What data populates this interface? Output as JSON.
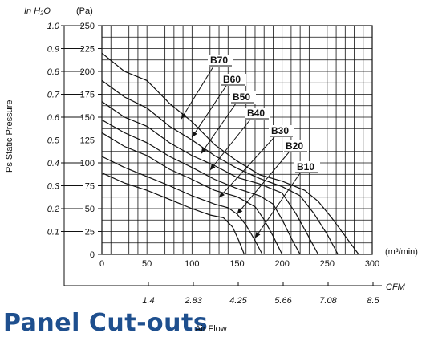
{
  "chart_data": {
    "type": "line",
    "xlabel": "(m³/min)",
    "ylabel": "Ps Static Pressure",
    "y_unit_left": "In H₂O",
    "y_unit_right": "(Pa)",
    "x2_label": "CFM",
    "xlim": [
      0,
      300
    ],
    "ylim": [
      0,
      250
    ],
    "grid": true,
    "x_ticks": [
      "0",
      "50",
      "100",
      "150",
      "200",
      "250",
      "300"
    ],
    "y_ticks_pa": [
      "0",
      "25",
      "50",
      "75",
      "100",
      "125",
      "150",
      "175",
      "200",
      "225",
      "250"
    ],
    "y_ticks_inh2o": [
      "0.1",
      "0.2",
      "0.3",
      "0.4",
      "0.5",
      "0.6",
      "0.7",
      "0.8",
      "0.9",
      "1.0"
    ],
    "cfm_ticks": [
      "1.4",
      "2.83",
      "4.25",
      "5.66",
      "7.08",
      "8.5"
    ],
    "series": [
      {
        "name": "B70",
        "points": [
          [
            0,
            220
          ],
          [
            25,
            200
          ],
          [
            50,
            190
          ],
          [
            75,
            165
          ],
          [
            100,
            145
          ],
          [
            125,
            120
          ],
          [
            150,
            102
          ],
          [
            175,
            87
          ],
          [
            200,
            80
          ],
          [
            225,
            70
          ],
          [
            240,
            58
          ],
          [
            255,
            40
          ],
          [
            270,
            20
          ],
          [
            285,
            0
          ]
        ]
      },
      {
        "name": "B60",
        "points": [
          [
            0,
            190
          ],
          [
            25,
            172
          ],
          [
            50,
            160
          ],
          [
            75,
            140
          ],
          [
            100,
            125
          ],
          [
            125,
            108
          ],
          [
            150,
            94
          ],
          [
            175,
            83
          ],
          [
            200,
            74
          ],
          [
            220,
            64
          ],
          [
            235,
            45
          ],
          [
            250,
            22
          ],
          [
            262,
            0
          ]
        ]
      },
      {
        "name": "B50",
        "points": [
          [
            0,
            167
          ],
          [
            25,
            150
          ],
          [
            50,
            140
          ],
          [
            75,
            122
          ],
          [
            100,
            108
          ],
          [
            125,
            97
          ],
          [
            150,
            84
          ],
          [
            175,
            77
          ],
          [
            200,
            67
          ],
          [
            215,
            45
          ],
          [
            228,
            22
          ],
          [
            240,
            0
          ]
        ]
      },
      {
        "name": "B40",
        "points": [
          [
            0,
            147
          ],
          [
            25,
            133
          ],
          [
            50,
            122
          ],
          [
            75,
            107
          ],
          [
            100,
            95
          ],
          [
            125,
            82
          ],
          [
            150,
            72
          ],
          [
            175,
            64
          ],
          [
            190,
            55
          ],
          [
            200,
            38
          ],
          [
            210,
            18
          ],
          [
            220,
            0
          ]
        ]
      },
      {
        "name": "B30",
        "points": [
          [
            0,
            133
          ],
          [
            25,
            118
          ],
          [
            50,
            108
          ],
          [
            75,
            93
          ],
          [
            100,
            82
          ],
          [
            125,
            70
          ],
          [
            150,
            63
          ],
          [
            170,
            52
          ],
          [
            180,
            38
          ],
          [
            190,
            20
          ],
          [
            200,
            0
          ]
        ]
      },
      {
        "name": "B20",
        "points": [
          [
            0,
            107
          ],
          [
            25,
            95
          ],
          [
            50,
            85
          ],
          [
            75,
            75
          ],
          [
            100,
            64
          ],
          [
            125,
            55
          ],
          [
            140,
            51
          ],
          [
            150,
            44
          ],
          [
            160,
            32
          ],
          [
            170,
            15
          ],
          [
            178,
            0
          ]
        ]
      },
      {
        "name": "B10",
        "points": [
          [
            0,
            89
          ],
          [
            25,
            78
          ],
          [
            50,
            70
          ],
          [
            75,
            60
          ],
          [
            100,
            50
          ],
          [
            120,
            43
          ],
          [
            135,
            40
          ],
          [
            145,
            30
          ],
          [
            152,
            15
          ],
          [
            158,
            0
          ]
        ]
      }
    ]
  },
  "footer": {
    "title": "Panel Cut-outs",
    "subtitle": "Air Flow"
  }
}
